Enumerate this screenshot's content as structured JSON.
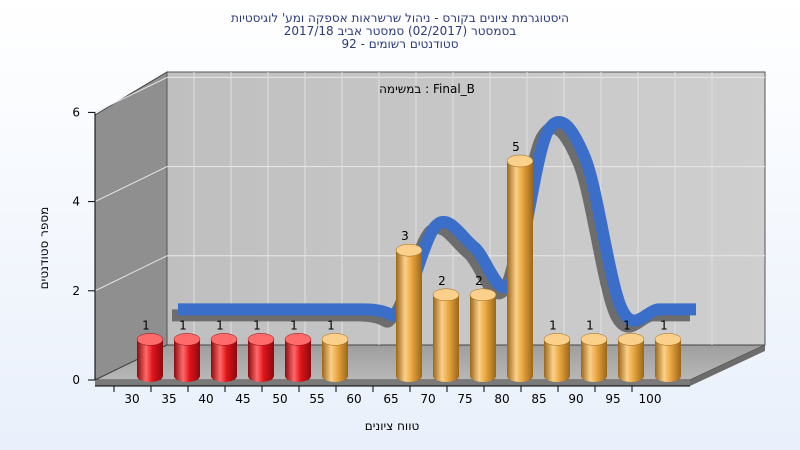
{
  "chart_data": {
    "type": "bar",
    "title_lines": [
      "היסטוגרמת ציונים בקורס - ניהול שרשראות אספקה ומע' לוגיסטיות",
      "בסמסטר  (02/2017)  סמסטר אביב 2017/18",
      "סטודנטים רשומים - 92"
    ],
    "subtitle": "במשימה : Final_B",
    "xlabel": "טווח ציונים",
    "ylabel": "מספר סטודנטים",
    "ylim": [
      0,
      6
    ],
    "yticks": [
      0,
      2,
      4,
      6
    ],
    "x_ticks": [
      "30",
      "35",
      "40",
      "45",
      "50",
      "55",
      "60",
      "65",
      "70",
      "75",
      "80",
      "85",
      "90",
      "95",
      "100"
    ],
    "bars": [
      {
        "x": 30,
        "value": 1,
        "label": "1",
        "color": "#e0141b"
      },
      {
        "x": 35,
        "value": 1,
        "label": "1",
        "color": "#e0141b"
      },
      {
        "x": 40,
        "value": 1,
        "label": "1",
        "color": "#e0141b"
      },
      {
        "x": 45,
        "value": 1,
        "label": "1",
        "color": "#e0141b"
      },
      {
        "x": 50,
        "value": 1,
        "label": "1",
        "color": "#e0141b"
      },
      {
        "x": 55,
        "value": 1,
        "label": "1",
        "color": "#e9a640"
      },
      {
        "x": 65,
        "value": 3,
        "label": "3",
        "color": "#e9a640"
      },
      {
        "x": 70,
        "value": 2,
        "label": "2",
        "color": "#e9a640"
      },
      {
        "x": 75,
        "value": 2,
        "label": "2",
        "color": "#e9a640"
      },
      {
        "x": 80,
        "value": 5,
        "label": "5",
        "color": "#e9a640"
      },
      {
        "x": 85,
        "value": 1,
        "label": "1",
        "color": "#e9a640"
      },
      {
        "x": 90,
        "value": 1,
        "label": "1",
        "color": "#e9a640"
      },
      {
        "x": 95,
        "value": 1,
        "label": "1",
        "color": "#e9a640"
      },
      {
        "x": 100,
        "value": 1,
        "label": "1",
        "color": "#e9a640"
      }
    ],
    "trend": {
      "color": "#3a6ec8",
      "points": [
        {
          "x": 30,
          "y": 1
        },
        {
          "x": 55,
          "y": 1
        },
        {
          "x": 60,
          "y": 1
        },
        {
          "x": 65,
          "y": 2.9
        },
        {
          "x": 70,
          "y": 2.4
        },
        {
          "x": 75,
          "y": 1.6
        },
        {
          "x": 80,
          "y": 5
        },
        {
          "x": 85,
          "y": 4.4
        },
        {
          "x": 90,
          "y": 1
        },
        {
          "x": 95,
          "y": 1
        },
        {
          "x": 100,
          "y": 1
        }
      ]
    },
    "grid": true,
    "legend": "none"
  }
}
